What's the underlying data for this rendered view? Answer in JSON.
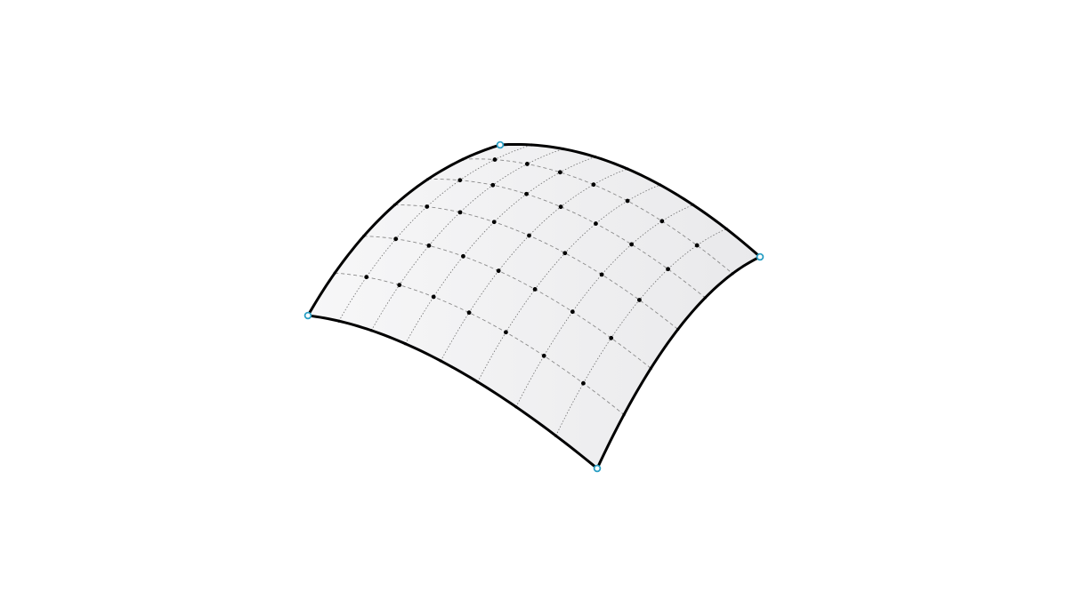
{
  "diagram": {
    "subject": "nurbs-surface-patch",
    "grid_divisions_u": 8,
    "grid_divisions_v": 6,
    "corner_control_points": 4,
    "colors": {
      "background": "#ffffff",
      "surface_fill_light": "#f7f7f8",
      "surface_fill_dark": "#e9e9eb",
      "boundary_edge": "#000000",
      "isocurve_u": "#6f6f6f",
      "isocurve_v": "#8a8a8a",
      "grid_point": "#000000",
      "corner_point_stroke": "#2a9fc4",
      "corner_point_fill": "#ffffff"
    }
  }
}
